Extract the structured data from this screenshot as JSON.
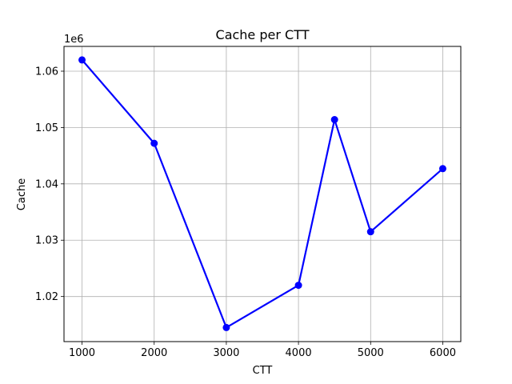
{
  "chart_data": {
    "type": "line",
    "title": "Cache per CTT",
    "xlabel": "CTT",
    "ylabel": "Cache",
    "y_offset_label": "1e6",
    "x": [
      1000,
      2000,
      3000,
      4000,
      4500,
      5000,
      6000
    ],
    "series": [
      {
        "values": [
          1062000,
          1047200,
          1014500,
          1022000,
          1051400,
          1031500,
          1042700
        ],
        "color": "#0000ff",
        "marker": "circle"
      }
    ],
    "xlim": [
      750,
      6250
    ],
    "ylim": [
      1012000,
      1064400
    ],
    "x_ticks": [
      1000,
      2000,
      3000,
      4000,
      5000,
      6000
    ],
    "x_tick_labels": [
      "1000",
      "2000",
      "3000",
      "4000",
      "5000",
      "6000"
    ],
    "y_ticks": [
      1020000,
      1030000,
      1040000,
      1050000,
      1060000
    ],
    "y_tick_labels": [
      "1.02",
      "1.03",
      "1.04",
      "1.05",
      "1.06"
    ],
    "grid": true,
    "grid_color": "#b0b0b0"
  }
}
